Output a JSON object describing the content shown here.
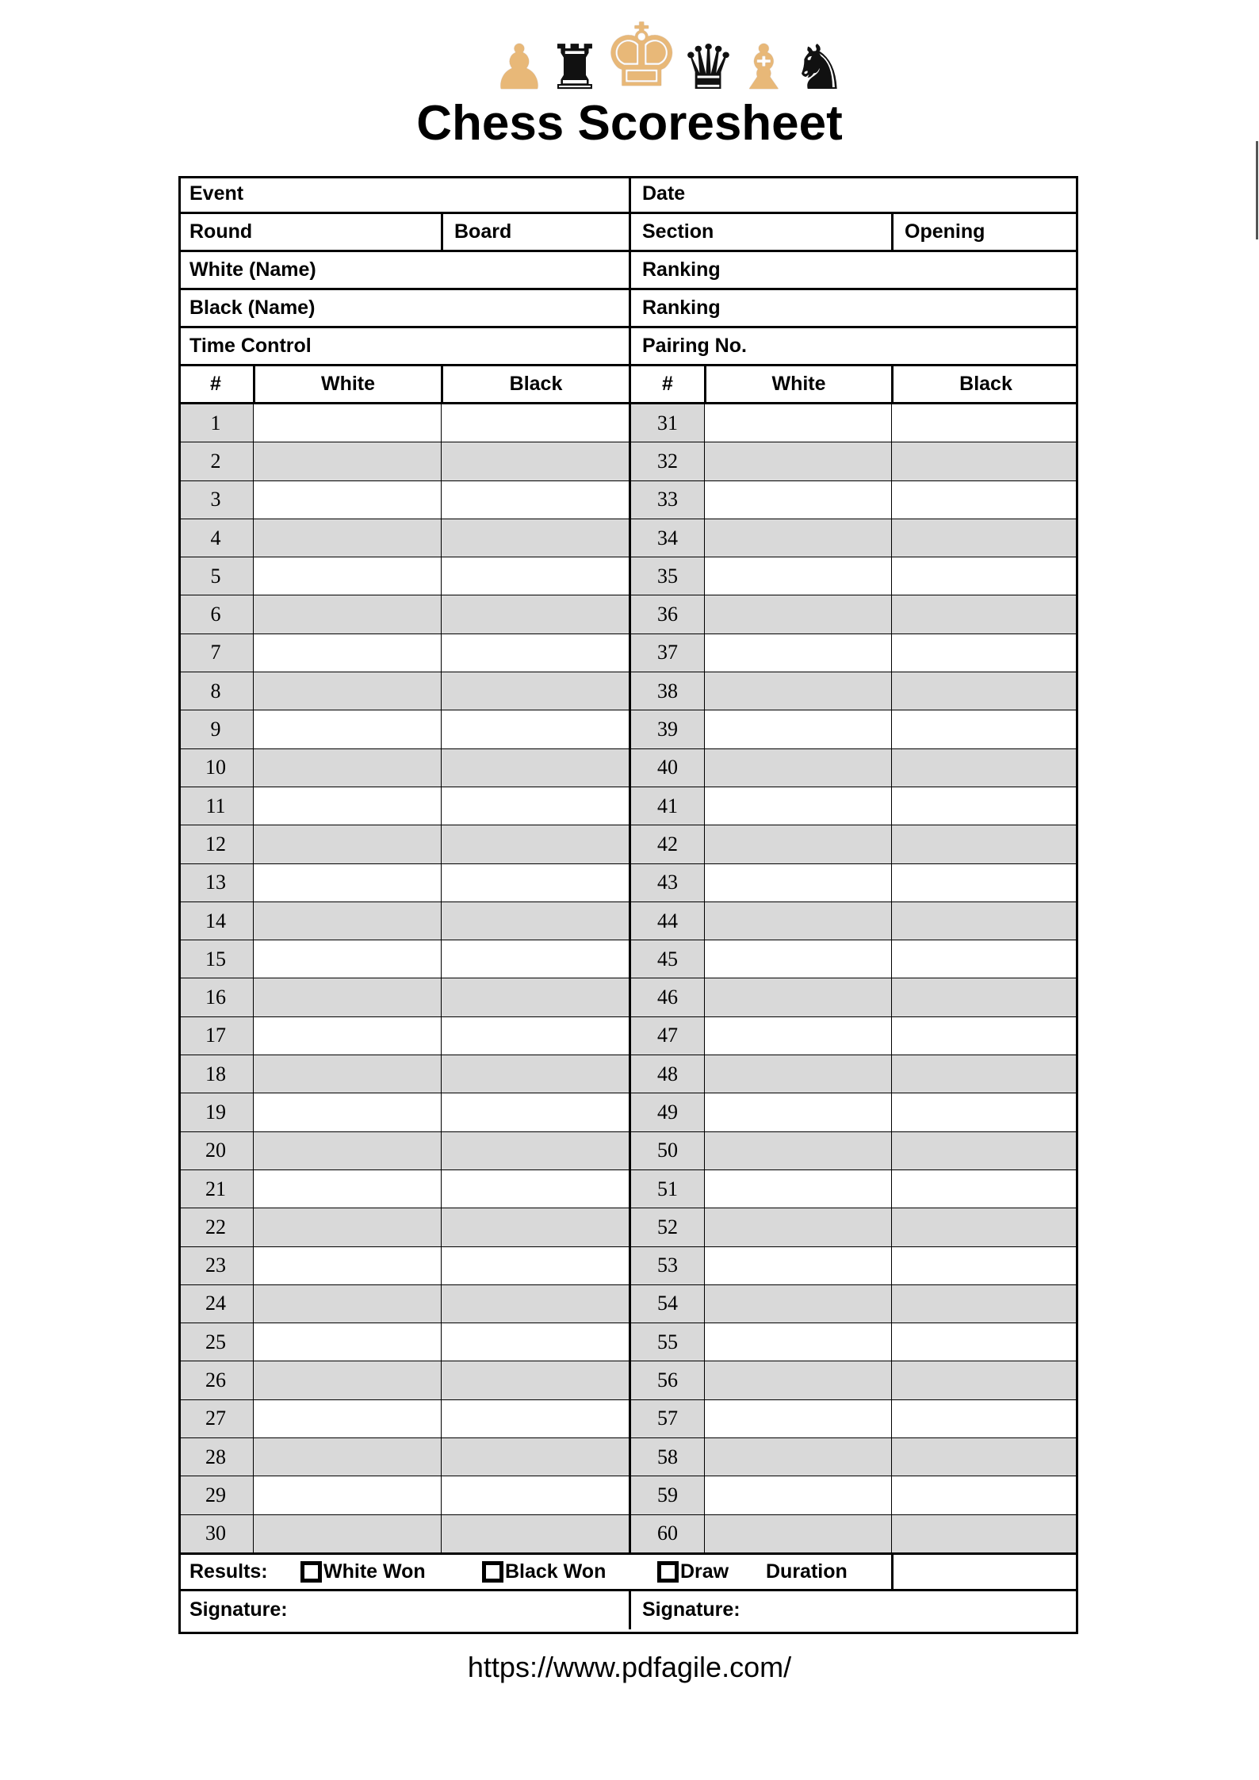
{
  "header": {
    "title": "Chess Scoresheet",
    "pieces": [
      {
        "name": "pawn",
        "color": "white",
        "glyph": "♟"
      },
      {
        "name": "rook",
        "color": "black",
        "glyph": "♜"
      },
      {
        "name": "king",
        "color": "white",
        "glyph": "♚"
      },
      {
        "name": "queen",
        "color": "black",
        "glyph": "♛"
      },
      {
        "name": "bishop",
        "color": "white",
        "glyph": "♝"
      },
      {
        "name": "knight",
        "color": "black",
        "glyph": "♞"
      }
    ]
  },
  "info": {
    "event": "Event",
    "date": "Date",
    "round": "Round",
    "board": "Board",
    "section": "Section",
    "opening": "Opening",
    "white_name": "White (Name)",
    "ranking1": "Ranking",
    "black_name": "Black (Name)",
    "ranking2": "Ranking",
    "time_control": "Time Control",
    "pairing": "Pairing No."
  },
  "columns": {
    "num": "#",
    "white": "White",
    "black": "Black"
  },
  "moves": {
    "left_start": 1,
    "right_start": 31,
    "count": 30
  },
  "results": {
    "label": "Results:",
    "white_won": "White Won",
    "black_won": "Black Won",
    "draw": "Draw",
    "duration": "Duration"
  },
  "signature": {
    "left": "Signature:",
    "right": "Signature:"
  },
  "footer": {
    "url": "https://www.pdfagile.com/"
  },
  "colors": {
    "shade": "#d9d9d9",
    "border": "#000000"
  }
}
